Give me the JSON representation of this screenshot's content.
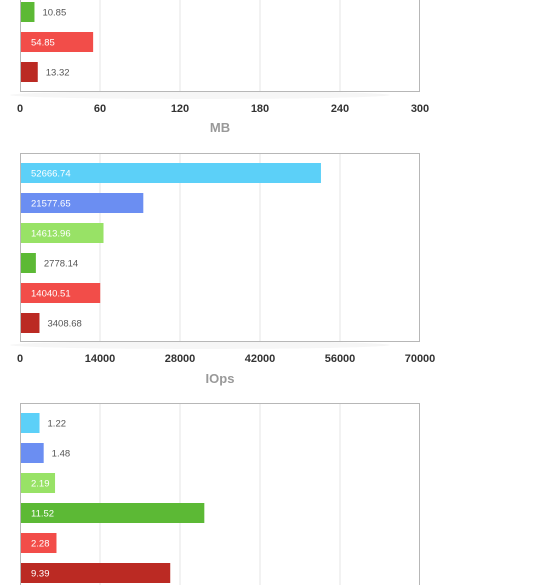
{
  "palette": [
    "#5cd0f8",
    "#6b8ef2",
    "#98e266",
    "#5cb935",
    "#f24d49",
    "#bb2a23"
  ],
  "chart_data": [
    {
      "type": "bar",
      "orientation": "horizontal",
      "xlabel": "MB",
      "xlim": [
        0,
        300
      ],
      "ticks": [
        "0",
        "60",
        "120",
        "180",
        "240",
        "300"
      ],
      "values": [
        null,
        null,
        null,
        10.85,
        54.85,
        13.32
      ],
      "labels": [
        "",
        "",
        "",
        "10.85",
        "54.85",
        "13.32"
      ],
      "cropped_top": true
    },
    {
      "type": "bar",
      "orientation": "horizontal",
      "xlabel": "IOps",
      "xlim": [
        0,
        70000
      ],
      "ticks": [
        "0",
        "14000",
        "28000",
        "42000",
        "56000",
        "70000"
      ],
      "values": [
        52666.74,
        21577.65,
        14613.96,
        2778.14,
        14040.51,
        3408.68
      ],
      "labels": [
        "52666.74",
        "21577.65",
        "14613.96",
        "2778.14",
        "14040.51",
        "3408.68"
      ]
    },
    {
      "type": "bar",
      "orientation": "horizontal",
      "xlabel": "",
      "xlim": [
        0,
        25
      ],
      "ticks": [],
      "values": [
        1.22,
        1.48,
        2.19,
        11.52,
        2.28,
        9.39
      ],
      "labels": [
        "1.22",
        "1.48",
        "2.19",
        "11.52",
        "2.28",
        "9.39"
      ],
      "cropped_bottom": true
    }
  ]
}
